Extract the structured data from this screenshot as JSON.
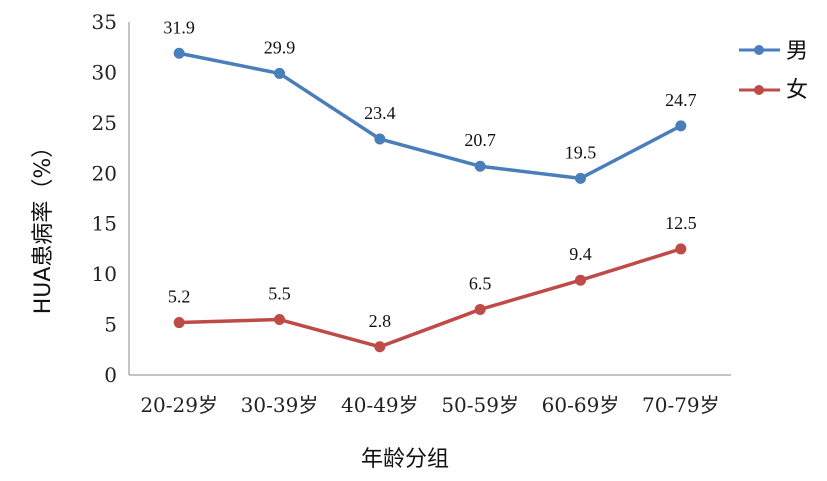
{
  "chart_data": {
    "type": "line",
    "title": "",
    "xlabel": "年龄分组",
    "ylabel": "HUA患病率（%）",
    "categories": [
      "20-29岁",
      "30-39岁",
      "40-49岁",
      "50-59岁",
      "60-69岁",
      "70-79岁"
    ],
    "ylim": [
      0,
      35
    ],
    "yticks": [
      "0",
      "5",
      "10",
      "15",
      "20",
      "25",
      "30",
      "35"
    ],
    "grid": false,
    "legend_position": "right",
    "series": [
      {
        "name": "男",
        "color": "#4a7ebb",
        "values": [
          31.9,
          29.9,
          23.4,
          20.7,
          19.5,
          24.7
        ],
        "labels": [
          "31.9",
          "29.9",
          "23.4",
          "20.7",
          "19.5",
          "24.7"
        ]
      },
      {
        "name": "女",
        "color": "#be4b48",
        "values": [
          5.2,
          5.5,
          2.8,
          6.5,
          9.4,
          12.5
        ],
        "labels": [
          "5.2",
          "5.5",
          "2.8",
          "6.5",
          "9.4",
          "12.5"
        ]
      }
    ]
  }
}
